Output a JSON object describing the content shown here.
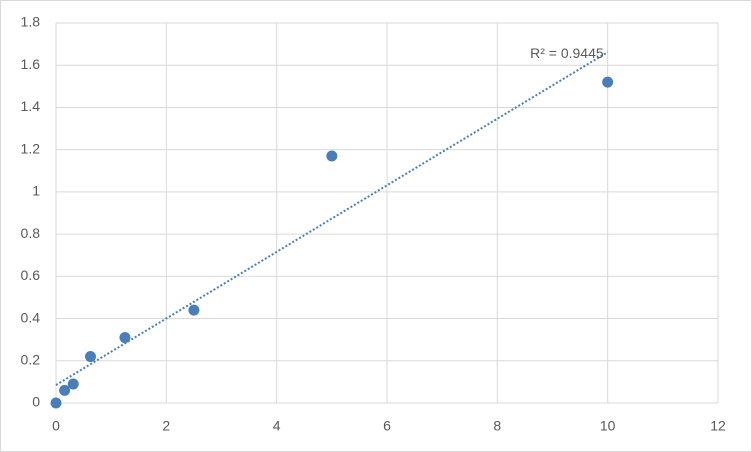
{
  "chart_data": {
    "type": "scatter",
    "x": [
      0,
      0.156,
      0.3125,
      0.625,
      1.25,
      2.5,
      5,
      10
    ],
    "values": [
      0,
      0.06,
      0.09,
      0.22,
      0.31,
      0.44,
      1.17,
      1.52
    ],
    "color": "#4a7ebb",
    "xlim": [
      0,
      12
    ],
    "xticks": [
      0,
      2,
      4,
      6,
      8,
      10,
      12
    ],
    "ylim": [
      0,
      1.8
    ],
    "yticks": [
      0,
      0.2,
      0.4,
      0.6,
      0.8,
      1,
      1.2,
      1.4,
      1.6,
      1.8
    ],
    "grid": true,
    "trendline": {
      "kind": "linear",
      "label": "R² = 0.9445"
    }
  }
}
